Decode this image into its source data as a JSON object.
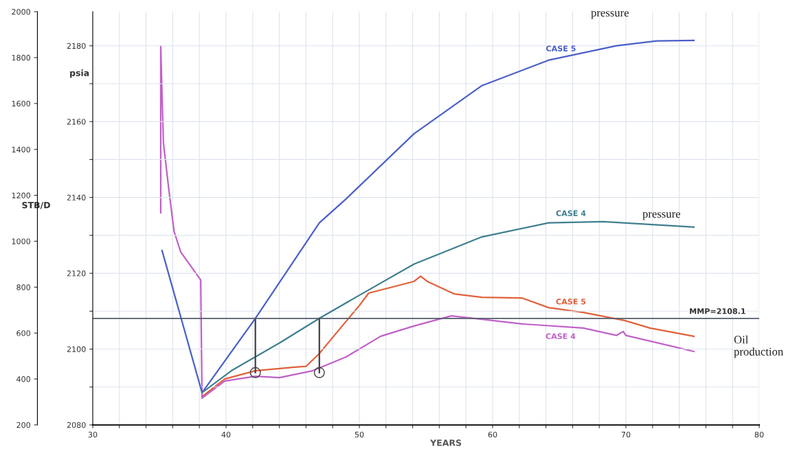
{
  "chart_data": {
    "type": "line",
    "xlabel": "YEARS",
    "ylabel": "STB/D",
    "y2label": "psia",
    "xlim": [
      30,
      80
    ],
    "xticks": [
      30,
      {
        "value": 32,
        "label": null
      },
      {
        "value": 34,
        "label": null
      },
      {
        "value": 36,
        "label": null
      },
      {
        "value": 38,
        "label": null
      },
      40,
      {
        "value": 42,
        "label": null
      },
      {
        "value": 44,
        "label": null
      },
      {
        "value": 46,
        "label": null
      },
      {
        "value": 48,
        "label": null
      },
      50,
      {
        "value": 52,
        "label": null
      },
      {
        "value": 54,
        "label": null
      },
      {
        "value": 56,
        "label": null
      },
      {
        "value": 58,
        "label": null
      },
      60,
      {
        "value": 62,
        "label": null
      },
      {
        "value": 64,
        "label": null
      },
      {
        "value": 66,
        "label": null
      },
      {
        "value": 68,
        "label": null
      },
      70,
      {
        "value": 72,
        "label": null
      },
      {
        "value": 74,
        "label": null
      },
      {
        "value": 76,
        "label": null
      },
      {
        "value": 78,
        "label": null
      },
      80
    ],
    "ylim": [
      200,
      2000
    ],
    "yticks": [
      200,
      400,
      600,
      800,
      1000,
      1200,
      1400,
      1600,
      1800,
      2000
    ],
    "y2lim": [
      2080,
      2189
    ],
    "y2ticks": [
      2080,
      {
        "value": 2090,
        "label": null
      },
      2100,
      {
        "value": 2110,
        "label": null
      },
      2120,
      {
        "value": 2130,
        "label": null
      },
      2140,
      {
        "value": 2150,
        "label": null
      },
      2160,
      {
        "value": 2170,
        "label": null
      },
      2180
    ],
    "grid": true,
    "series": [
      {
        "name": "CASE 5",
        "axis": "y2",
        "color": "#4a5fc8",
        "x": [
          35.2,
          38.2,
          42.2,
          47.0,
          49.0,
          54.1,
          59.2,
          64.2,
          69.3,
          72.3,
          75.1
        ],
        "values": [
          2126.0,
          2088.5,
          2108.1,
          2133.3,
          2139.6,
          2156.8,
          2169.5,
          2176.2,
          2180.0,
          2181.3,
          2181.4
        ]
      },
      {
        "name": "CASE 4",
        "axis": "y2",
        "color": "#3f7f8f",
        "x": [
          38.2,
          40.4,
          44.0,
          47.0,
          50.0,
          54.1,
          59.2,
          64.2,
          68.3,
          75.1
        ],
        "values": [
          2088.5,
          2094.3,
          2101.6,
          2108.1,
          2114.2,
          2122.4,
          2129.6,
          2133.3,
          2133.6,
          2132.2
        ]
      },
      {
        "name": "CASE 5",
        "color": "#e0603a",
        "x": [
          38.2,
          39.9,
          42.2,
          45.0,
          46.0,
          47.0,
          48.5,
          50.0,
          50.7,
          52.1,
          54.1,
          54.6,
          55.1,
          57.1,
          59.2,
          62.2,
          64.2,
          66.8,
          69.9,
          71.8,
          75.1
        ],
        "values": [
          323,
          400,
          436,
          451,
          455,
          511,
          616,
          720,
          774,
          795,
          825,
          848,
          825,
          771,
          756,
          753,
          711,
          690,
          655,
          622,
          586
        ]
      },
      {
        "name": "CASE 4",
        "color": "#c060c8",
        "x": [
          35.1,
          35.1,
          35.3,
          35.7,
          36.1,
          36.6,
          38.1,
          38.2,
          39.9,
          42.2,
          44.0,
          46.5,
          49.0,
          51.6,
          54.1,
          56.9,
          59.2,
          62.2,
          66.8,
          69.3,
          69.8,
          70.0,
          75.1
        ],
        "values": [
          1124,
          1850,
          1429,
          1229,
          1043,
          953,
          831,
          317,
          391,
          412,
          406,
          436,
          496,
          586,
          631,
          675,
          660,
          640,
          622,
          590,
          607,
          590,
          520
        ]
      },
      {
        "axis": "y2",
        "color": "#404040",
        "x": [
          42.2,
          42.2
        ],
        "values": [
          2108.1,
          2093.8
        ]
      },
      {
        "axis": "y2",
        "color": "#404040",
        "x": [
          47.0,
          47.0
        ],
        "values": [
          2108.1,
          2093.8
        ]
      },
      {
        "type": "scatter",
        "axis": "y2",
        "color": "#404040",
        "marker": "circle",
        "x": [
          42.2,
          47.0
        ],
        "values": [
          2093.8,
          2093.8
        ]
      }
    ],
    "ref_lines": [
      {
        "axis": "y2",
        "value": 2108.1,
        "label": "MMP=2108.1",
        "color": "#505a6a"
      }
    ],
    "annotations": [
      "pressure",
      "pressure",
      "Oil\nproduction"
    ]
  }
}
